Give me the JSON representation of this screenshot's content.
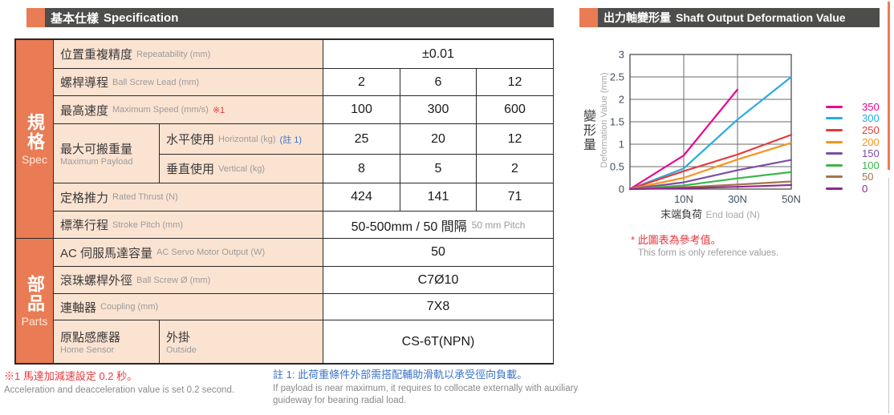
{
  "headers": {
    "spec": {
      "zh": "基本仕樣",
      "en": "Specification"
    },
    "chart": {
      "zh": "出力軸變形量",
      "en": "Shaft Output Deformation Value"
    }
  },
  "colors": {
    "accent_orange": "#e97c54",
    "header_bar": "#4d4d4b",
    "label_peach": "#fbe3d2",
    "note_red": "#e8383b",
    "note_blue": "#3e74c7"
  },
  "table": {
    "sections": {
      "spec": {
        "zh": "規格",
        "en": "Spec"
      },
      "parts": {
        "zh": "部品",
        "en": "Parts"
      }
    },
    "rows": {
      "repeatability": {
        "zh": "位置重複精度",
        "en": "Repeatability (mm)",
        "value": "±0.01"
      },
      "lead": {
        "zh": "螺桿導程",
        "en": "Ball Screw Lead (mm)",
        "values": [
          "2",
          "6",
          "12"
        ]
      },
      "speed": {
        "zh": "最高速度",
        "en": "Maximum Speed (mm/s)",
        "note": "※1",
        "values": [
          "100",
          "300",
          "600"
        ]
      },
      "payload": {
        "zh": "最大可搬重量",
        "en": "Maximum Payload"
      },
      "horizontal": {
        "zh": "水平使用",
        "en": "Horizontal (kg)",
        "note": "(註 1)",
        "values": [
          "25",
          "20",
          "12"
        ]
      },
      "vertical": {
        "zh": "垂直使用",
        "en": "Vertical (kg)",
        "values": [
          "8",
          "5",
          "2"
        ]
      },
      "thrust": {
        "zh": "定格推力",
        "en": "Rated Thrust (N)",
        "values": [
          "424",
          "141",
          "71"
        ]
      },
      "stroke": {
        "zh": "標準行程",
        "en": "Stroke Pitch (mm)",
        "value_zh": "50-500mm / 50 間隔",
        "value_en": "50 mm Pitch"
      },
      "motor": {
        "zh": "AC 伺服馬達容量",
        "en": "AC Servo Motor Output (W)",
        "value": "50"
      },
      "screw": {
        "zh": "滾珠螺桿外徑",
        "en": "Ball Screw Ø (mm)",
        "value": "C7Ø10"
      },
      "coupling": {
        "zh": "連軸器",
        "en": "Coupling (mm)",
        "value": "7X8"
      },
      "sensor": {
        "zh": "原點感應器",
        "en": "Home Sensor",
        "sub_zh": "外掛",
        "sub_en": "Outside",
        "value": "CS-6T(NPN)"
      }
    }
  },
  "footnotes": {
    "left_zh": "※1 馬達加減速設定 0.2 秒。",
    "left_en": "Acceleration and deacceleration value is set 0.2 second.",
    "right_zh": "註 1: 此荷重條件外部需搭配輔助滑軌以承受徑向負載。",
    "right_en": "If payload is near maximum, it requires to collocate externally with auxiliary guideway for bearing radial load."
  },
  "chart_data": {
    "type": "line",
    "title_zh": "出力軸變形量",
    "title_en": "Shaft Output Deformation Value",
    "x": [
      0,
      10,
      30,
      50
    ],
    "x_tick_labels": [
      "10N",
      "30N",
      "50N"
    ],
    "xlabel_zh": "末端負荷",
    "xlabel_en": "End load (N)",
    "ylabel_zh": "變形量",
    "ylabel_en": "Deformation Value (mm)",
    "ylim": [
      0,
      3
    ],
    "ytick_step": 0.5,
    "grid": true,
    "legend_position": "right",
    "series": [
      {
        "name": "350",
        "color": "#ec008c",
        "x": [
          0,
          10,
          30
        ],
        "values": [
          0,
          0.75,
          2.22
        ]
      },
      {
        "name": "300",
        "color": "#29abe2",
        "x": [
          0,
          10,
          30,
          50
        ],
        "values": [
          0,
          0.46,
          1.55,
          2.5
        ]
      },
      {
        "name": "250",
        "color": "#e8383b",
        "x": [
          0,
          10,
          30,
          50
        ],
        "values": [
          0,
          0.4,
          0.77,
          1.21
        ]
      },
      {
        "name": "200",
        "color": "#f7941d",
        "x": [
          0,
          10,
          30,
          50
        ],
        "values": [
          0,
          0.25,
          0.66,
          1.03
        ]
      },
      {
        "name": "150",
        "color": "#7b4ea3",
        "x": [
          0,
          10,
          30,
          50
        ],
        "values": [
          0,
          0.15,
          0.42,
          0.65
        ]
      },
      {
        "name": "100",
        "color": "#3cb54a",
        "x": [
          0,
          10,
          30,
          50
        ],
        "values": [
          0,
          0.08,
          0.24,
          0.38
        ]
      },
      {
        "name": "50",
        "color": "#a0774f",
        "x": [
          0,
          10,
          30,
          50
        ],
        "values": [
          0,
          0.04,
          0.1,
          0.17
        ]
      },
      {
        "name": "0",
        "color": "#92278f",
        "x": [
          0,
          10,
          30,
          50
        ],
        "values": [
          0,
          0.02,
          0.05,
          0.09
        ]
      }
    ],
    "note_zh": "* 此圖表為參考值。",
    "note_en": "This form is only reference values."
  }
}
